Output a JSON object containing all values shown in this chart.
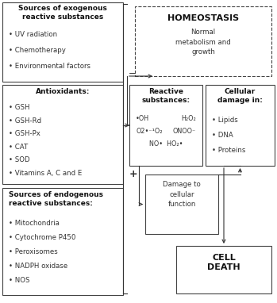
{
  "bg_color": "#ffffff",
  "border_color": "#444444",
  "text_color": "#333333",
  "title": "HOMEOSTASIS",
  "subtitle": "Normal\nmetabolism and\ngrowth",
  "box_exogenous_title": "Sources of exogenous\nreactive substances",
  "box_exogenous_items": [
    "UV radiation",
    "Chemotherapy",
    "Environmental factors"
  ],
  "box_antioxidants_title": "Antioxidants:",
  "box_antioxidants_items": [
    "GSH",
    "GSH-Rd",
    "GSH-Px",
    "CAT",
    "SOD",
    "Vitamins A, C and E"
  ],
  "box_endogenous_title": "Sources of endogenous\nreactive substances:",
  "box_endogenous_items": [
    "Mitochondria",
    "Cytochrome P450",
    "Peroxisomes",
    "NADPH oxidase",
    "NOS"
  ],
  "box_reactive_title": "Reactive\nsubstances:",
  "box_reactive_line1a": "•OH",
  "box_reactive_line1b": "H₂O₂",
  "box_reactive_line2a": "O2•⁻¹O₂",
  "box_reactive_line2b": "ONOO⁻",
  "box_reactive_line3": "NO•  HO₂•",
  "box_cellular_title": "Cellular\ndamage in:",
  "box_cellular_items": [
    "Lipids",
    "DNA",
    "Proteins"
  ],
  "box_damage_text": "Damage to\ncellular\nfunction",
  "box_cell_death_text": "CELL\nDEATH",
  "lw": 0.8,
  "fs_body": 6.2,
  "fs_bold": 6.5,
  "fs_title_large": 8.0,
  "fs_reactive": 5.8
}
